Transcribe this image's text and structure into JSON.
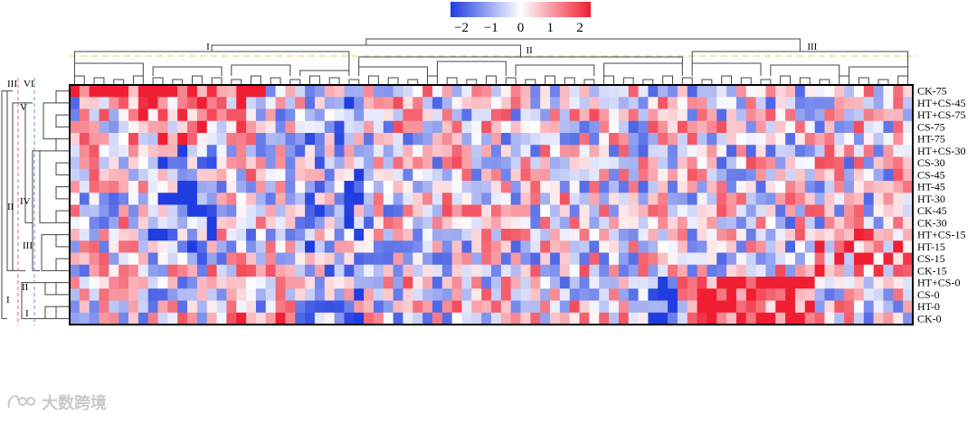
{
  "chart_data": {
    "type": "heatmap",
    "title": "",
    "xlabel": "",
    "ylabel": "",
    "rows": [
      "CK-75",
      "HT+CS-45",
      "HT+CS-75",
      "CS-75",
      "HT-75",
      "HT+CS-30",
      "CS-30",
      "CS-45",
      "HT-45",
      "HT-30",
      "CK-45",
      "CK-30",
      "HT+CS-15",
      "HT-15",
      "CS-15",
      "CK-15",
      "HT+CS-0",
      "CS-0",
      "HT-0",
      "CK-0"
    ],
    "n_columns": 86,
    "colorbar": {
      "min": -2,
      "max": 2,
      "ticks": [
        "−2",
        "−1",
        "0",
        "1",
        "2"
      ],
      "low_color": "#1f3de0",
      "mid_color": "#ffffff",
      "high_color": "#f01e32"
    },
    "column_clusters": [
      {
        "label": "I",
        "start": 0,
        "end": 28
      },
      {
        "label": "II",
        "start": 29,
        "end": 62
      },
      {
        "label": "III",
        "start": 63,
        "end": 85
      }
    ],
    "row_cluster_labels": [
      {
        "label": "I",
        "rows": [
          16,
          19
        ]
      },
      {
        "label": "II",
        "rows": [
          0,
          15
        ]
      },
      {
        "label": "III",
        "rows": [
          0,
          0
        ]
      },
      {
        "label": "I",
        "rows": [
          18,
          19
        ]
      },
      {
        "label": "II",
        "rows": [
          16,
          17
        ]
      },
      {
        "label": "III",
        "rows": [
          12,
          15
        ]
      },
      {
        "label": "IV",
        "rows": [
          5,
          11
        ]
      },
      {
        "label": "V",
        "rows": [
          1,
          4
        ]
      },
      {
        "label": "VI",
        "rows": [
          0,
          0
        ]
      }
    ]
  },
  "watermark": {
    "text": "大数跨境"
  },
  "colors": {
    "dendro_dash": "#e8e08a",
    "group_line_red": "#e06a6a",
    "group_line_blue": "#6a8fe0"
  }
}
